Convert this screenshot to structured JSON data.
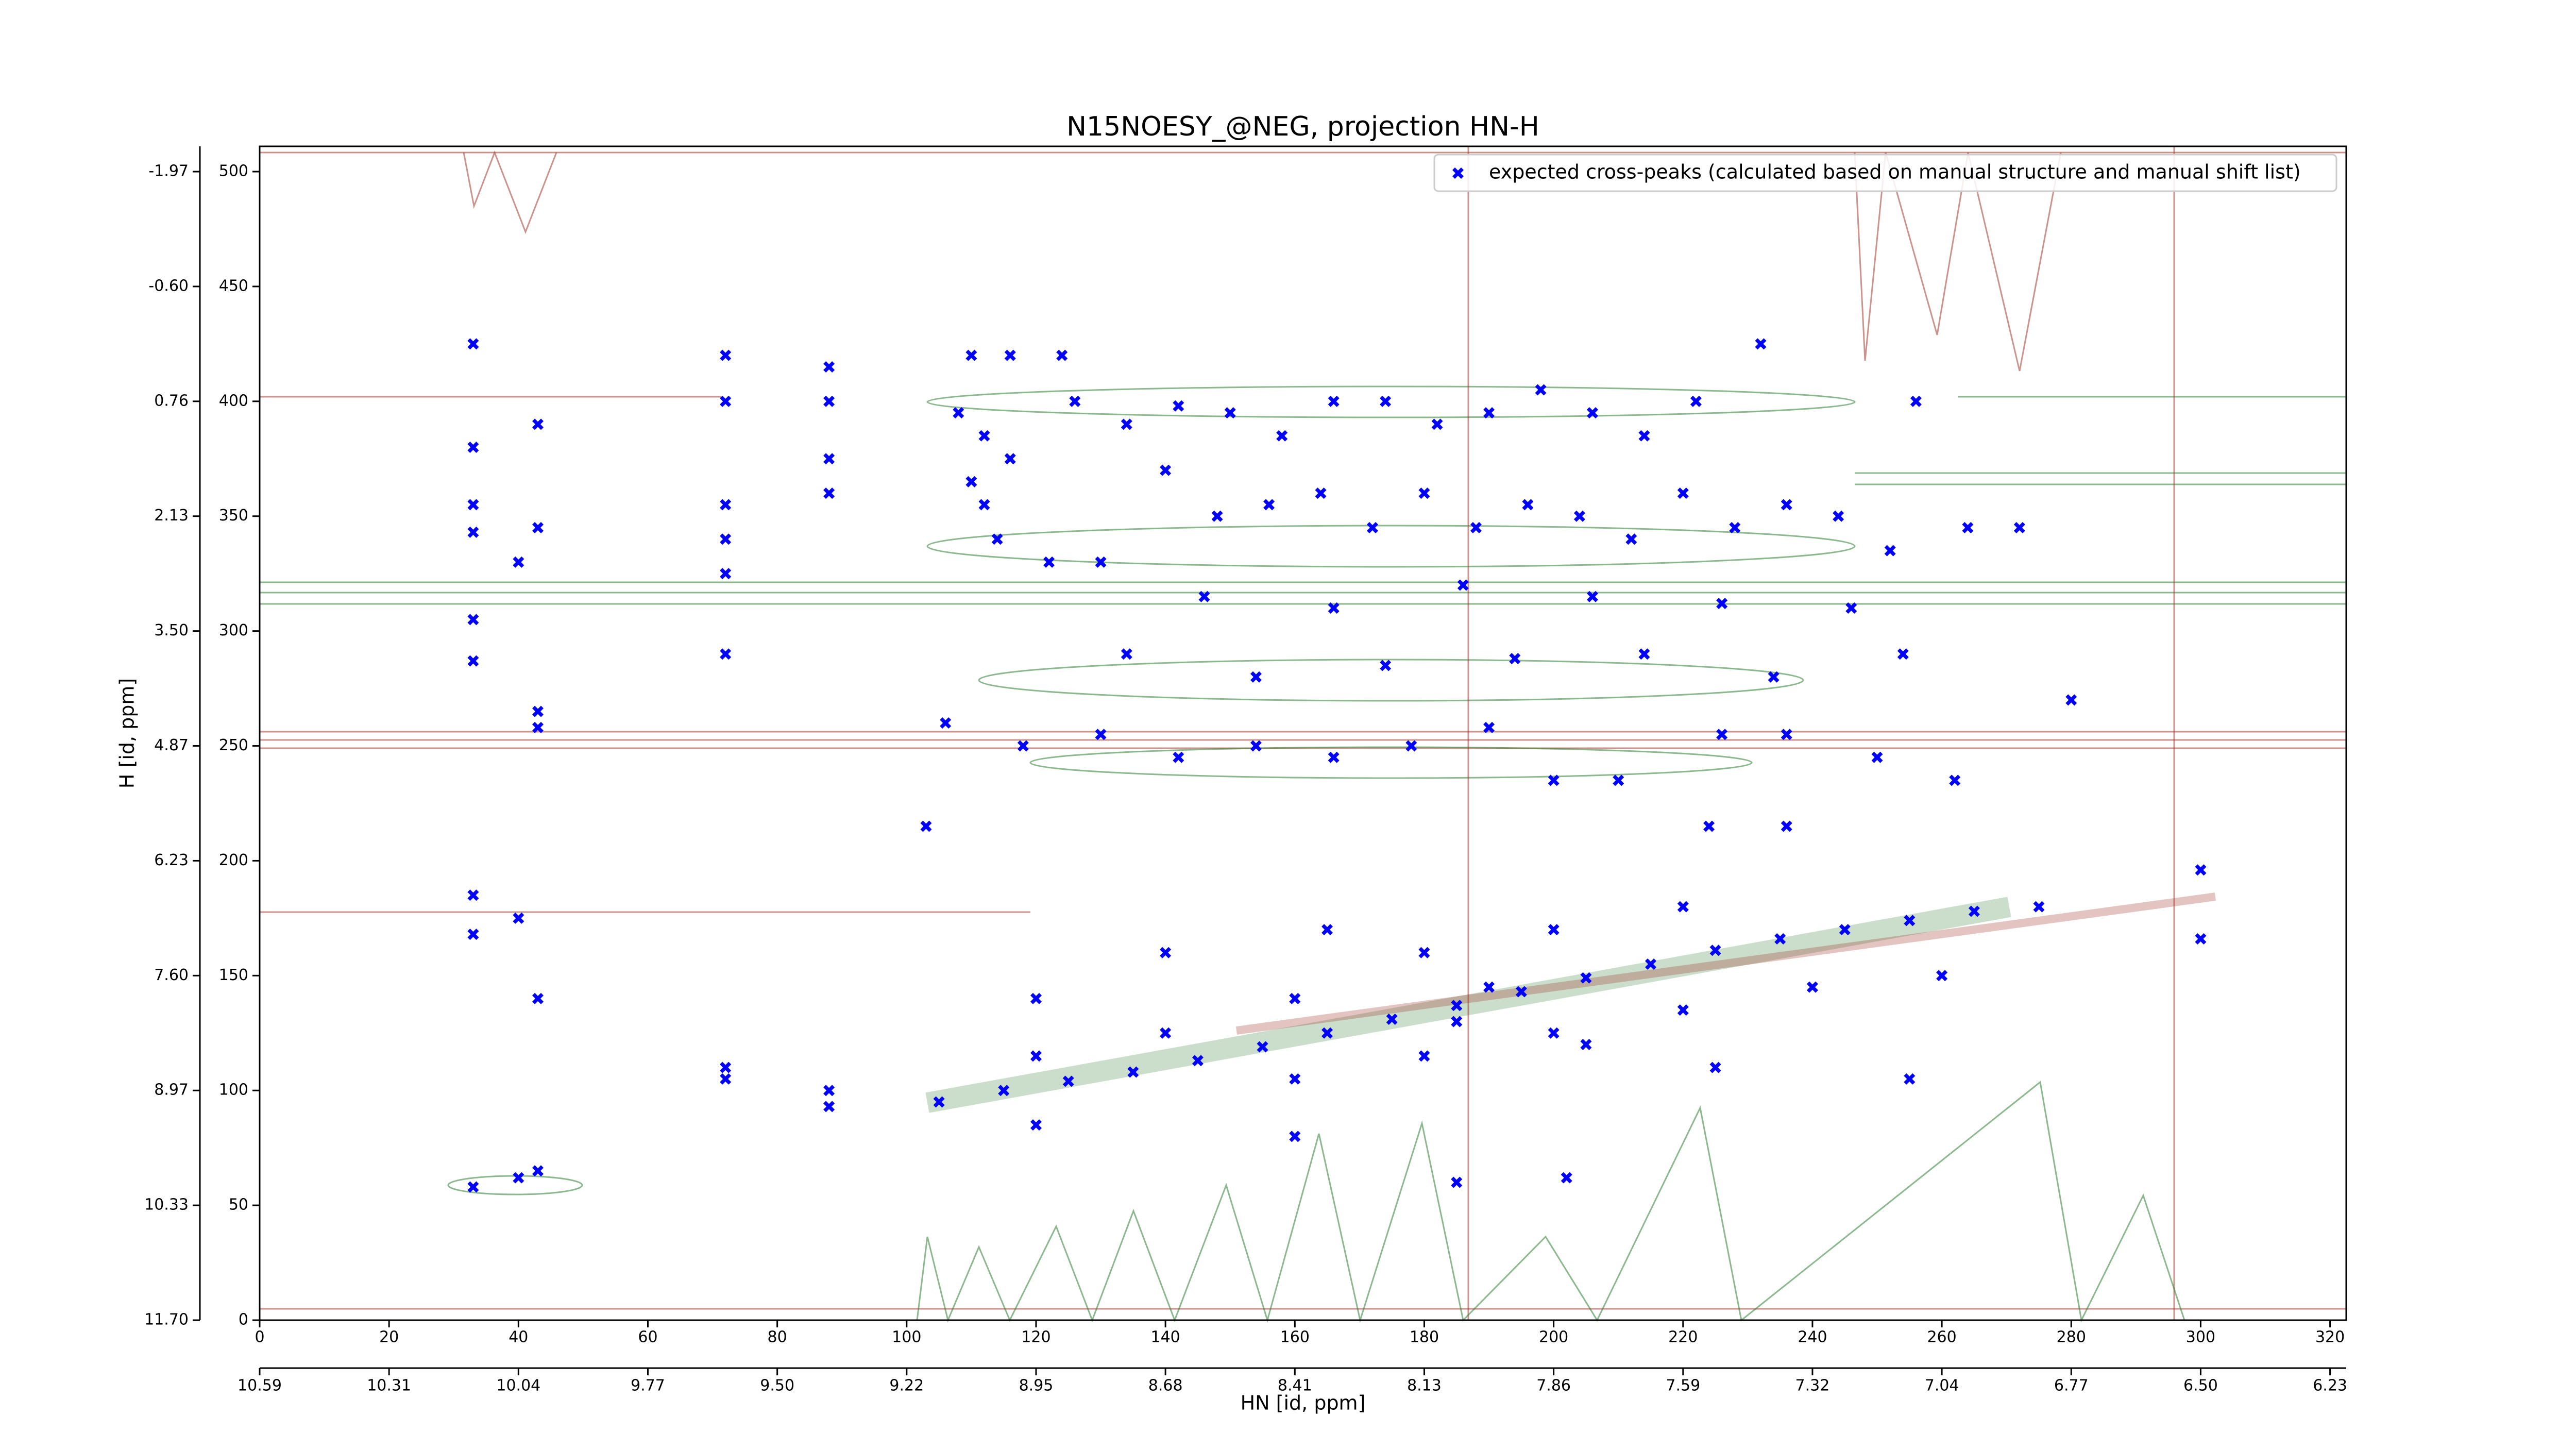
{
  "chart_data": {
    "type": "scatter",
    "title": "N15NOESY_@NEG, projection HN-H",
    "xlabel": "HN [id, ppm]",
    "ylabel": "H [id, ppm]",
    "xlim": [
      0,
      322.5
    ],
    "ylim": [
      0,
      511
    ],
    "xticks": [
      0,
      20,
      40,
      60,
      80,
      100,
      120,
      140,
      160,
      180,
      200,
      220,
      240,
      260,
      280,
      300,
      320
    ],
    "yticks": [
      0,
      50,
      100,
      150,
      200,
      250,
      300,
      350,
      400,
      450,
      500
    ],
    "x2ticks": [
      {
        "value": 0,
        "label": "10.59"
      },
      {
        "value": 20,
        "label": "10.31"
      },
      {
        "value": 40,
        "label": "10.04"
      },
      {
        "value": 60,
        "label": "9.77"
      },
      {
        "value": 80,
        "label": "9.50"
      },
      {
        "value": 100,
        "label": "9.22"
      },
      {
        "value": 120,
        "label": "8.95"
      },
      {
        "value": 140,
        "label": "8.68"
      },
      {
        "value": 160,
        "label": "8.41"
      },
      {
        "value": 180,
        "label": "8.13"
      },
      {
        "value": 200,
        "label": "7.86"
      },
      {
        "value": 220,
        "label": "7.59"
      },
      {
        "value": 240,
        "label": "7.32"
      },
      {
        "value": 260,
        "label": "7.04"
      },
      {
        "value": 280,
        "label": "6.77"
      },
      {
        "value": 300,
        "label": "6.50"
      },
      {
        "value": 320,
        "label": "6.23"
      }
    ],
    "y2ticks": [
      {
        "value": 0,
        "label": "11.70"
      },
      {
        "value": 50,
        "label": "10.33"
      },
      {
        "value": 100,
        "label": "8.97"
      },
      {
        "value": 150,
        "label": "7.60"
      },
      {
        "value": 200,
        "label": "6.23"
      },
      {
        "value": 250,
        "label": "4.87"
      },
      {
        "value": 300,
        "label": "3.50"
      },
      {
        "value": 350,
        "label": "2.13"
      },
      {
        "value": 400,
        "label": "0.76"
      },
      {
        "value": 450,
        "label": "-0.60"
      },
      {
        "value": 500,
        "label": "-1.97"
      }
    ],
    "legend": "upper right",
    "series": [
      {
        "name": "expected cross-peaks (calculated based on manual structure and manual shift list)",
        "color": "#0000ff",
        "x": [
          33,
          33,
          33,
          33,
          33,
          33,
          43,
          43,
          40,
          43,
          43,
          72,
          72,
          72,
          72,
          72,
          72,
          72,
          72,
          88,
          88,
          88,
          88,
          88,
          88,
          33,
          40,
          33,
          43,
          33,
          40,
          43,
          103,
          232,
          110,
          116,
          124,
          108,
          112,
          116,
          110,
          112,
          114,
          122,
          126,
          134,
          142,
          150,
          158,
          166,
          174,
          182,
          190,
          198,
          206,
          214,
          222,
          140,
          148,
          156,
          164,
          172,
          180,
          188,
          196,
          204,
          212,
          220,
          228,
          236,
          244,
          252,
          256,
          264,
          272,
          130,
          146,
          166,
          186,
          206,
          226,
          246,
          134,
          154,
          174,
          194,
          214,
          234,
          254,
          106,
          118,
          130,
          142,
          154,
          166,
          178,
          190,
          200,
          210,
          226,
          236,
          250,
          262,
          280,
          224,
          236,
          105,
          115,
          125,
          135,
          145,
          155,
          165,
          175,
          185,
          195,
          205,
          215,
          225,
          235,
          245,
          255,
          265,
          275,
          120,
          140,
          160,
          180,
          200,
          220,
          160,
          180,
          200,
          220,
          120,
          140,
          165,
          185,
          205,
          225,
          240,
          260,
          255,
          190,
          185,
          202,
          120,
          160,
          300,
          300
        ],
        "values": [
          425,
          380,
          355,
          343,
          305,
          287,
          265,
          258,
          330,
          345,
          390,
          420,
          400,
          355,
          340,
          325,
          290,
          110,
          105,
          415,
          400,
          375,
          360,
          100,
          93,
          185,
          175,
          168,
          140,
          58,
          62,
          65,
          215,
          425,
          420,
          420,
          420,
          395,
          385,
          375,
          365,
          355,
          340,
          330,
          400,
          390,
          398,
          395,
          385,
          400,
          400,
          390,
          395,
          405,
          395,
          385,
          400,
          370,
          350,
          355,
          360,
          345,
          360,
          345,
          355,
          350,
          340,
          360,
          345,
          355,
          350,
          335,
          400,
          345,
          345,
          330,
          315,
          310,
          320,
          315,
          312,
          310,
          290,
          280,
          285,
          288,
          290,
          280,
          290,
          260,
          250,
          255,
          245,
          250,
          245,
          250,
          258,
          235,
          235,
          255,
          255,
          245,
          235,
          270,
          215,
          215,
          95,
          100,
          104,
          108,
          113,
          119,
          125,
          131,
          137,
          143,
          149,
          155,
          161,
          166,
          170,
          174,
          178,
          180,
          115,
          125,
          140,
          160,
          170,
          180,
          105,
          115,
          125,
          135,
          140,
          160,
          170,
          130,
          120,
          110,
          145,
          150,
          105,
          145,
          60,
          62,
          85,
          80,
          166,
          196
        ]
      }
    ]
  }
}
